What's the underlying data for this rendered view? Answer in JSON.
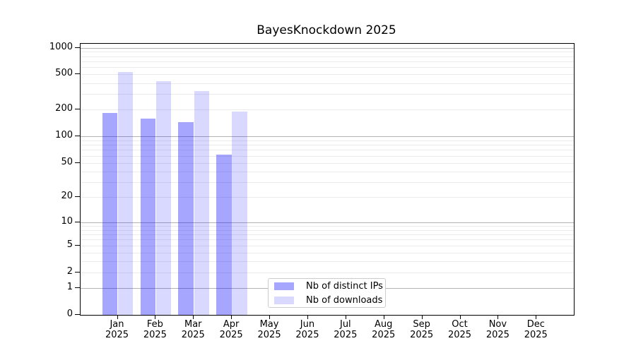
{
  "figure": {
    "title": "BayesKnockdown 2025"
  },
  "colors": {
    "bar_distinct_ips": "rgba(0,0,255,0.35)",
    "bar_downloads": "rgba(0,0,255,0.15)",
    "grid_major": "#b3b3b3",
    "grid_minor": "#ebebeb",
    "axis": "#000000",
    "legend_border": "#cccccc",
    "background": "#ffffff"
  },
  "chart_data": {
    "type": "bar",
    "title": "BayesKnockdown 2025",
    "categories": [
      "Jan 2025",
      "Feb 2025",
      "Mar 2025",
      "Apr 2025",
      "May 2025",
      "Jun 2025",
      "Jul 2025",
      "Aug 2025",
      "Sep 2025",
      "Oct 2025",
      "Nov 2025",
      "Dec 2025"
    ],
    "series": [
      {
        "name": "Nb of distinct IPs",
        "values": [
          183,
          158,
          145,
          62,
          0,
          0,
          0,
          0,
          0,
          0,
          0,
          0
        ],
        "color": "rgba(0,0,255,0.35)"
      },
      {
        "name": "Nb of downloads",
        "values": [
          533,
          416,
          323,
          190,
          0,
          0,
          0,
          0,
          0,
          0,
          0,
          0
        ],
        "color": "rgba(0,0,255,0.15)"
      }
    ],
    "xlabel": "",
    "ylabel": "",
    "yscale": "log1p",
    "ylim": [
      0,
      1000
    ],
    "yticks": [
      0,
      1,
      2,
      5,
      10,
      20,
      50,
      100,
      200,
      500,
      1000
    ],
    "grid": "horizontal",
    "legend_position": "inside-bottom-center"
  }
}
